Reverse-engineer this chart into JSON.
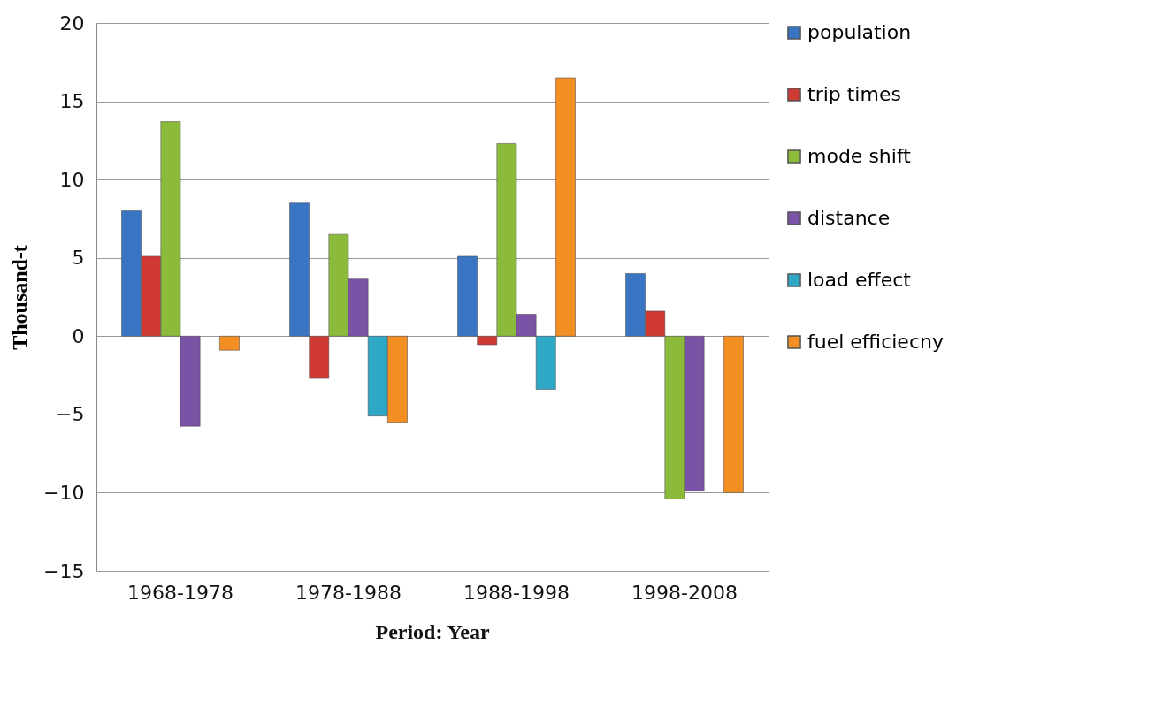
{
  "chart_data": {
    "type": "bar",
    "xlabel": "Period: Year",
    "ylabel": "Thousand-t",
    "categories": [
      "1968-1978",
      "1978-1988",
      "1988-1998",
      "1998-2008"
    ],
    "series": [
      {
        "name": "population",
        "color": "#3a75c4",
        "values": [
          8.0,
          8.5,
          5.1,
          4.0
        ]
      },
      {
        "name": "trip times",
        "color": "#d03a35",
        "values": [
          5.1,
          -2.7,
          -0.55,
          1.6
        ]
      },
      {
        "name": "mode shift",
        "color": "#8cbb3c",
        "values": [
          13.7,
          6.5,
          12.3,
          -10.4
        ]
      },
      {
        "name": "distance",
        "color": "#7a52a6",
        "values": [
          -5.75,
          3.65,
          1.4,
          -9.9
        ]
      },
      {
        "name": "load effect",
        "color": "#2fa8c6",
        "values": [
          null,
          -5.1,
          -3.4,
          null
        ]
      },
      {
        "name": "fuel efficiecny",
        "color": "#f38f22",
        "values": [
          -0.9,
          -5.5,
          16.5,
          -10.0
        ]
      }
    ],
    "ylim": [
      -15,
      20
    ],
    "yticks": [
      -15,
      -10,
      -5,
      0,
      5,
      10,
      15,
      20
    ],
    "grid": "y",
    "legend": "right"
  }
}
